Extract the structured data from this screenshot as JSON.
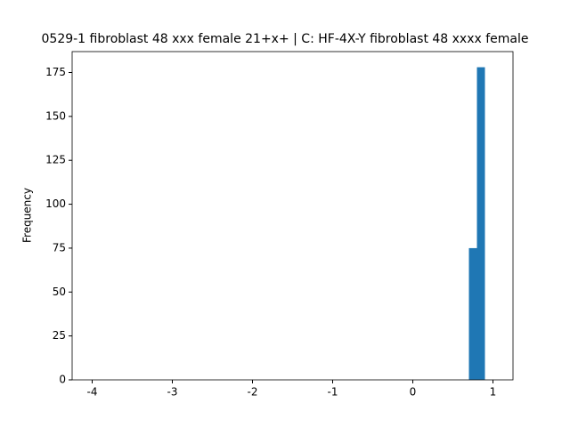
{
  "chart_data": {
    "type": "histogram",
    "title": "0529-1 fibroblast 48 xxx female 21+x+ | C: HF-4X-Y fibroblast 48 xxxx female",
    "ylabel": "Frequency",
    "bins": [
      0.7,
      0.8,
      0.9
    ],
    "values": [
      75,
      178
    ],
    "color": "#1f77b4",
    "xlim": [
      -4.25,
      1.25
    ],
    "xticks": [
      -4,
      -3,
      -2,
      -1,
      0,
      1
    ],
    "ylim": [
      0,
      186.9
    ],
    "yticks": [
      0,
      25,
      50,
      75,
      100,
      125,
      150,
      175
    ],
    "grid": false
  }
}
